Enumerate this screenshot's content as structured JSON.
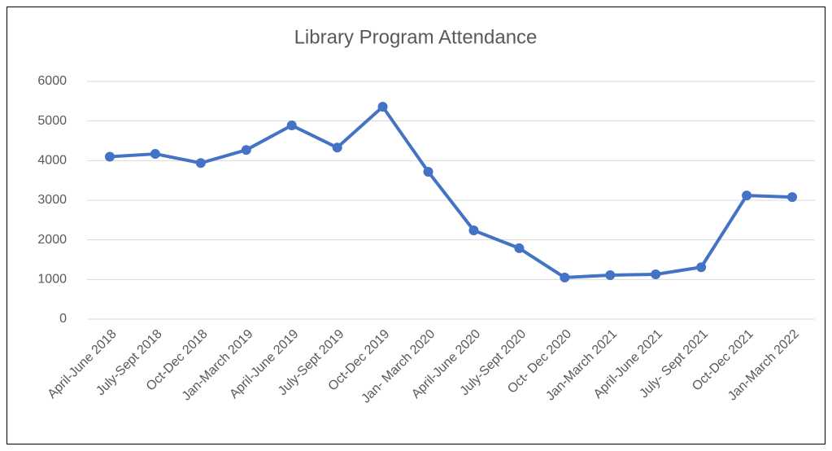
{
  "chart_data": {
    "type": "line",
    "title": "Library Program Attendance",
    "categories": [
      "April-June 2018",
      "July-Sept 2018",
      "Oct-Dec 2018",
      "Jan-March 2019",
      "April-June 2019",
      "July-Sept 2019",
      "Oct-Dec 2019",
      "Jan- March 2020",
      "April-June 2020",
      "July-Sept 2020",
      "Oct- Dec 2020",
      "Jan-March 2021",
      "April-June 2021",
      "July- Sept 2021",
      "Oct-Dec 2021",
      "Jan-March 2022"
    ],
    "values": [
      4100,
      4170,
      3940,
      4270,
      4890,
      4330,
      5360,
      3720,
      2240,
      1790,
      1050,
      1110,
      1130,
      1310,
      3120,
      3080
    ],
    "color": "#4472c4",
    "ylim": [
      0,
      6000
    ],
    "yticks": [
      0,
      1000,
      2000,
      3000,
      4000,
      5000,
      6000
    ],
    "grid": true
  }
}
